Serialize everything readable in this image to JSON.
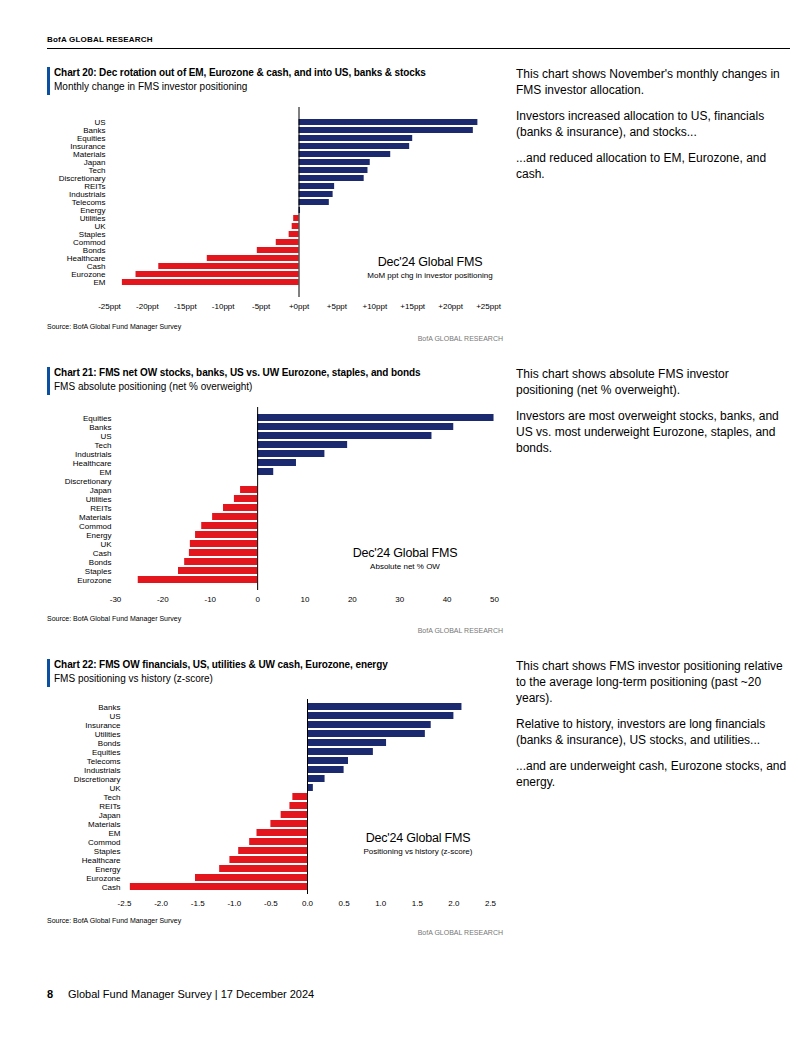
{
  "header": {
    "text": "BofA GLOBAL RESEARCH"
  },
  "chart_data": [
    {
      "type": "bar",
      "orientation": "horizontal",
      "title": "Chart 20: Dec rotation out of EM, Eurozone & cash, and into US, banks & stocks",
      "subtitle": "Monthly change in FMS investor positioning",
      "annotations": [
        "Dec'24 Global FMS",
        "MoM ppt chg in investor positioning"
      ],
      "source": "Source: BofA Global Fund Manager Survey",
      "watermark": "BofA GLOBAL RESEARCH",
      "commentary": [
        "This chart shows November's monthly changes in FMS investor allocation.",
        "Investors increased allocation to US, financials (banks & insurance), and stocks...",
        "...and reduced allocation to EM, Eurozone, and cash."
      ],
      "categories": [
        "US",
        "Banks",
        "Equities",
        "Insurance",
        "Materials",
        "Japan",
        "Tech",
        "Discretionary",
        "REITs",
        "Industrials",
        "Telecoms",
        "Energy",
        "Utilities",
        "UK",
        "Staples",
        "Commod",
        "Bonds",
        "Healthcare",
        "Cash",
        "Eurozone",
        "EM"
      ],
      "values": [
        23.6,
        23.0,
        15.0,
        14.6,
        12.1,
        9.4,
        9.1,
        8.6,
        4.7,
        4.5,
        4.0,
        0.2,
        -0.7,
        -0.9,
        -1.3,
        -3.0,
        -5.5,
        -12.1,
        -18.5,
        -21.5,
        -23.3
      ],
      "colors": [
        "#1b2a6e",
        "#1b2a6e",
        "#1b2a6e",
        "#1b2a6e",
        "#1b2a6e",
        "#1b2a6e",
        "#1b2a6e",
        "#1b2a6e",
        "#1b2a6e",
        "#1b2a6e",
        "#1b2a6e",
        "#1b2a6e",
        "#e3161e",
        "#e3161e",
        "#e3161e",
        "#e3161e",
        "#e3161e",
        "#e3161e",
        "#e3161e",
        "#e3161e",
        "#e3161e"
      ],
      "xlim": [
        -25,
        25
      ],
      "xticks": [
        {
          "value": -25,
          "label": "-25ppt"
        },
        {
          "value": -20,
          "label": "-20ppt"
        },
        {
          "value": -15,
          "label": "-15ppt"
        },
        {
          "value": -10,
          "label": "-10ppt"
        },
        {
          "value": -5,
          "label": "-5ppt"
        },
        {
          "value": 0,
          "label": "+0ppt"
        },
        {
          "value": 5,
          "label": "+5ppt"
        },
        {
          "value": 10,
          "label": "+10ppt"
        },
        {
          "value": 15,
          "label": "+15ppt"
        },
        {
          "value": 20,
          "label": "+20ppt"
        },
        {
          "value": 25,
          "label": "+25ppt"
        }
      ],
      "grid": false
    },
    {
      "type": "bar",
      "orientation": "horizontal",
      "title": "Chart 21: FMS net OW stocks, banks, US vs. UW Eurozone, staples, and bonds",
      "subtitle": "FMS absolute positioning (net % overweight)",
      "annotations": [
        "Dec'24 Global FMS",
        "Absolute net % OW"
      ],
      "source": "Source: BofA Global Fund Manager Survey",
      "watermark": "BofA GLOBAL RESEARCH",
      "commentary": [
        "This chart shows absolute FMS investor positioning (net % overweight).",
        "Investors are most overweight stocks, banks, and US vs. most underweight Eurozone, staples, and bonds."
      ],
      "categories": [
        "Equities",
        "Banks",
        "US",
        "Tech",
        "Industrials",
        "Healthcare",
        "EM",
        "Discretionary",
        "Japan",
        "Utilities",
        "REITs",
        "Materials",
        "Commod",
        "Energy",
        "UK",
        "Cash",
        "Bonds",
        "Staples",
        "Eurozone"
      ],
      "values": [
        49.9,
        41.4,
        36.8,
        19.0,
        14.2,
        8.2,
        3.4,
        0.0,
        -3.6,
        -4.9,
        -7.2,
        -9.5,
        -11.8,
        -13.1,
        -14.2,
        -14.4,
        -15.4,
        -16.7,
        -25.2
      ],
      "colors": [
        "#1b2a6e",
        "#1b2a6e",
        "#1b2a6e",
        "#1b2a6e",
        "#1b2a6e",
        "#1b2a6e",
        "#1b2a6e",
        "#1b2a6e",
        "#e3161e",
        "#e3161e",
        "#e3161e",
        "#e3161e",
        "#e3161e",
        "#e3161e",
        "#e3161e",
        "#e3161e",
        "#e3161e",
        "#e3161e",
        "#e3161e"
      ],
      "xlim": [
        -30,
        50
      ],
      "xticks": [
        -30,
        -20,
        -10,
        0,
        10,
        20,
        30,
        40,
        50
      ],
      "grid": false
    },
    {
      "type": "bar",
      "orientation": "horizontal",
      "title": "Chart 22: FMS OW financials, US, utilities & UW cash, Eurozone, energy",
      "subtitle": "FMS positioning vs history (z-score)",
      "annotations": [
        "Dec'24 Global FMS",
        "Positioning vs history (z-score)"
      ],
      "source": "Source: BofA Global Fund Manager Survey",
      "watermark": "BofA GLOBAL RESEARCH",
      "commentary": [
        "This chart shows FMS investor positioning relative to the average long-term positioning (past ~20 years).",
        "Relative to history, investors are long financials (banks & insurance), US stocks, and utilities...",
        "...and are underweight cash, Eurozone stocks, and energy."
      ],
      "categories": [
        "Banks",
        "US",
        "Insurance",
        "Utilities",
        "Bonds",
        "Equities",
        "Telecoms",
        "Industrials",
        "Discretionary",
        "UK",
        "Tech",
        "REITs",
        "Japan",
        "Materials",
        "EM",
        "Commod",
        "Staples",
        "Healthcare",
        "Energy",
        "Eurozone",
        "Cash"
      ],
      "values": [
        2.11,
        2.0,
        1.69,
        1.61,
        1.08,
        0.9,
        0.56,
        0.5,
        0.24,
        0.08,
        -0.2,
        -0.24,
        -0.36,
        -0.5,
        -0.69,
        -0.79,
        -0.94,
        -1.06,
        -1.2,
        -1.53,
        -2.42
      ],
      "colors": [
        "#1b2a6e",
        "#1b2a6e",
        "#1b2a6e",
        "#1b2a6e",
        "#1b2a6e",
        "#1b2a6e",
        "#1b2a6e",
        "#1b2a6e",
        "#1b2a6e",
        "#1b2a6e",
        "#e3161e",
        "#e3161e",
        "#e3161e",
        "#e3161e",
        "#e3161e",
        "#e3161e",
        "#e3161e",
        "#e3161e",
        "#e3161e",
        "#e3161e",
        "#e3161e"
      ],
      "xlim": [
        -2.5,
        2.5
      ],
      "xticks": [
        -2.5,
        {
          "value": -2,
          "label": "-2.0"
        },
        -1.5,
        {
          "value": -1,
          "label": "-1.0"
        },
        -0.5,
        {
          "value": 0,
          "label": "0.0"
        },
        0.5,
        {
          "value": 1,
          "label": "1.0"
        },
        1.5,
        {
          "value": 2,
          "label": "2.0"
        },
        2.5
      ],
      "grid": false
    }
  ],
  "footer": {
    "page": "8",
    "text": "Global Fund Manager Survey | 17 December 2024"
  }
}
